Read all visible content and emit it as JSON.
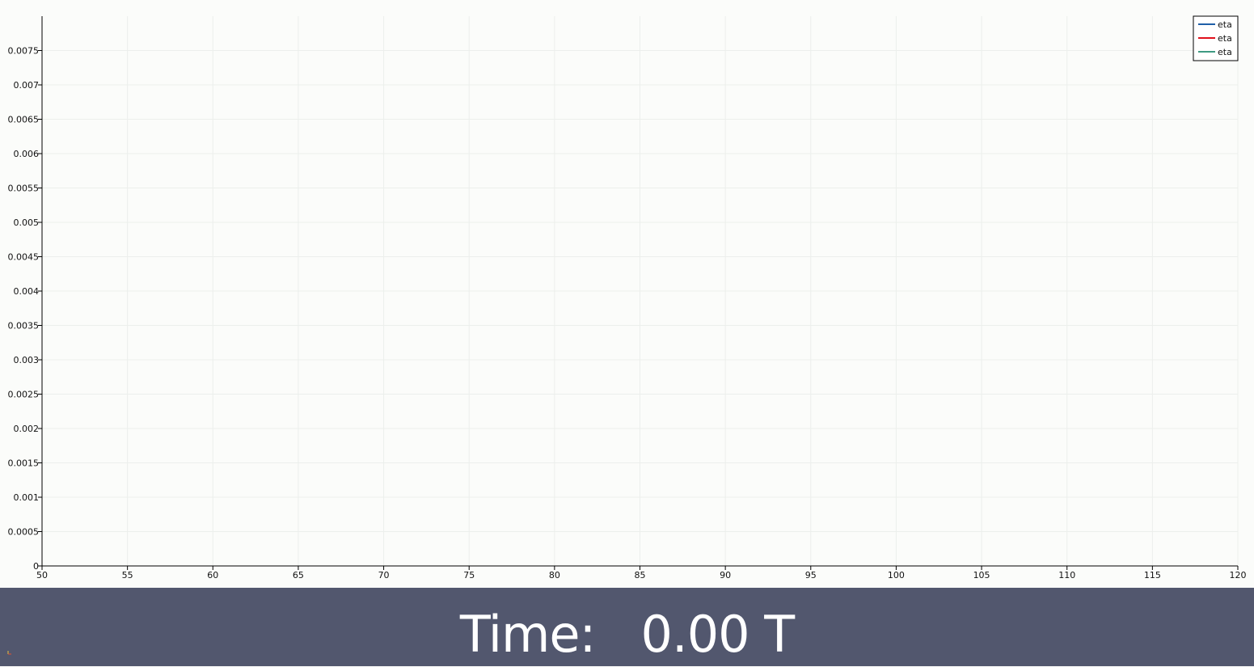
{
  "chart_data": {
    "type": "line",
    "title": "",
    "xlabel": "",
    "ylabel": "",
    "xlim": [
      50,
      120
    ],
    "ylim": [
      0,
      0.008
    ],
    "x_ticks": [
      50,
      55,
      60,
      65,
      70,
      75,
      80,
      85,
      90,
      95,
      100,
      105,
      110,
      115,
      120
    ],
    "x_tick_labels": [
      "50",
      "55",
      "60",
      "65",
      "70",
      "75",
      "80",
      "85",
      "90",
      "95",
      "100",
      "105",
      "110",
      "115",
      "120"
    ],
    "y_ticks": [
      0,
      0.0005,
      0.001,
      0.0015,
      0.002,
      0.0025,
      0.003,
      0.0035,
      0.004,
      0.0045,
      0.005,
      0.0055,
      0.006,
      0.0065,
      0.007,
      0.0075
    ],
    "y_tick_labels": [
      "0",
      "0.0005",
      "0.001",
      "0.0015",
      "0.002",
      "0.0025",
      "0.003",
      "0.0035",
      "0.004",
      "0.0045",
      "0.005",
      "0.0055",
      "0.006",
      "0.0065",
      "0.007",
      "0.0075"
    ],
    "grid": true,
    "legend_position": "top-right",
    "series": [
      {
        "name": "eta",
        "color": "#1f5fa8",
        "x": [],
        "y": []
      },
      {
        "name": "eta",
        "color": "#e0101c",
        "x": [],
        "y": []
      },
      {
        "name": "eta",
        "color": "#3e9a82",
        "x": [],
        "y": []
      }
    ]
  },
  "footer": {
    "time_text": "Time:   0.00 T"
  },
  "colors": {
    "background": "#fbfcfa",
    "footer_background": "#52576e",
    "grid": "#ecefec",
    "axis": "#000000"
  }
}
